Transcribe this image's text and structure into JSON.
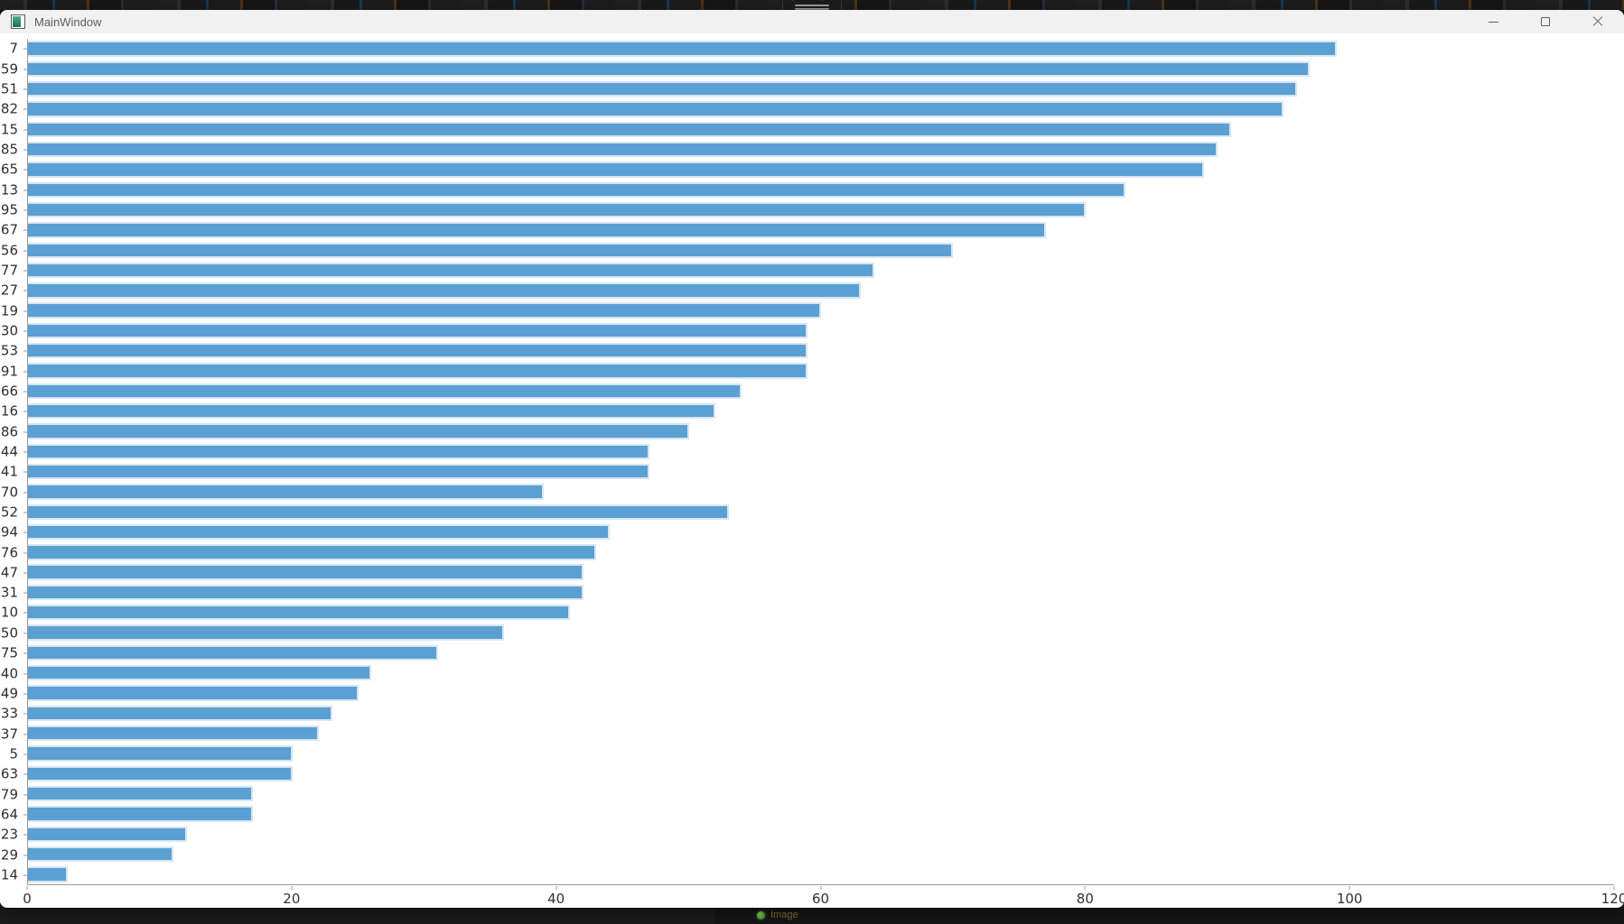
{
  "window": {
    "title": "MainWindow",
    "controls": {
      "minimize": "minimize",
      "maximize": "maximize",
      "close": "close"
    }
  },
  "taskbar": {
    "item_label": "Image"
  },
  "colors": {
    "bar_fill": "#5aa0d2",
    "bar_edge": "#d6e6f3",
    "axis": "#9a9a9a",
    "titlebar_bg": "#f1f1f1",
    "strip_bg": "#1b1b1b",
    "task_item_green": "#3f8f2f"
  },
  "chart_data": {
    "type": "bar",
    "orientation": "horizontal",
    "title": "",
    "xlabel": "",
    "ylabel": "",
    "categories": [
      "7",
      "59",
      "51",
      "82",
      "15",
      "85",
      "65",
      "13",
      "95",
      "67",
      "56",
      "77",
      "27",
      "19",
      "30",
      "53",
      "91",
      "66",
      "16",
      "86",
      "44",
      "41",
      "70",
      "52",
      "94",
      "76",
      "47",
      "31",
      "10",
      "50",
      "75",
      "40",
      "49",
      "33",
      "37",
      "5",
      "63",
      "79",
      "64",
      "23",
      "29",
      "14"
    ],
    "values": [
      99,
      97,
      96,
      95,
      91,
      90,
      89,
      83,
      80,
      77,
      70,
      64,
      63,
      60,
      59,
      59,
      59,
      54,
      52,
      50,
      47,
      47,
      39,
      53,
      44,
      43,
      42,
      42,
      41,
      36,
      31,
      26,
      25,
      23,
      22,
      20,
      20,
      17,
      17,
      12,
      11,
      3
    ],
    "xlim": [
      0,
      120
    ],
    "xticks": [
      0,
      20,
      40,
      60,
      80,
      100,
      120
    ],
    "grid": false,
    "legend": false
  }
}
